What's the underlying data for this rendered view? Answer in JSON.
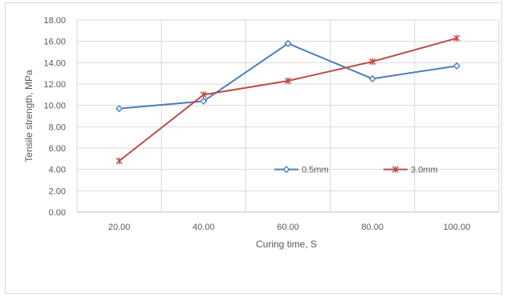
{
  "chart_data": {
    "type": "line",
    "title": "",
    "xlabel": "Curing time, S",
    "ylabel": "Tensile strength, MPa",
    "categories": [
      "20.00",
      "40.00",
      "60.00",
      "80.00",
      "100.00"
    ],
    "y_ticks": [
      "0.00",
      "2.00",
      "4.00",
      "6.00",
      "8.00",
      "10.00",
      "12.00",
      "14.00",
      "16.00",
      "18.00"
    ],
    "ylim": [
      0,
      18
    ],
    "grid": true,
    "legend_position": "inside-lower-right",
    "series": [
      {
        "name": "0.5mm",
        "color": "#4a7ebb",
        "marker": "diamond",
        "values": [
          9.7,
          10.4,
          15.8,
          12.5,
          13.7
        ]
      },
      {
        "name": "3.0mm",
        "color": "#be4b48",
        "marker": "star",
        "values": [
          4.8,
          11.0,
          12.3,
          14.1,
          16.3
        ]
      }
    ]
  }
}
